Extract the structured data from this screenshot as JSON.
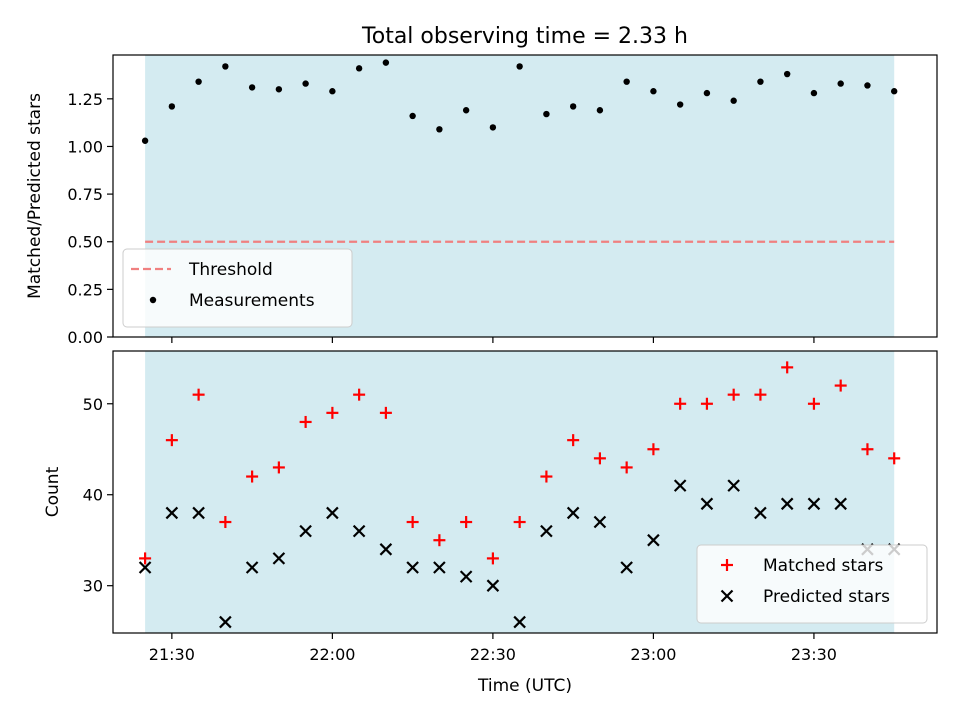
{
  "chart_data": [
    {
      "type": "scatter",
      "title": "Total observing time = 2.33 h",
      "xlabel": "",
      "ylabel": "Matched/Predicted stars",
      "ylim": [
        0,
        1.48
      ],
      "yticks": [
        "0.00",
        "0.25",
        "0.50",
        "0.75",
        "1.00",
        "1.25"
      ],
      "xticks": [
        "21:30",
        "22:00",
        "22:30",
        "23:00",
        "23:30"
      ],
      "x_range": [
        "21:19",
        "23:53"
      ],
      "shaded_interval": [
        "21:25",
        "23:45"
      ],
      "shade_color": "#d4ebf1",
      "grid": false,
      "legend_position": "lower-left",
      "threshold": {
        "name": "Threshold",
        "y": 0.5,
        "color": "#f08080",
        "style": "dashed"
      },
      "series": [
        {
          "name": "Measurements",
          "color": "#000000",
          "marker": "dot",
          "x": [
            "21:25",
            "21:30",
            "21:35",
            "21:40",
            "21:45",
            "21:50",
            "21:55",
            "22:00",
            "22:05",
            "22:10",
            "22:15",
            "22:20",
            "22:25",
            "22:30",
            "22:35",
            "22:40",
            "22:45",
            "22:50",
            "22:55",
            "23:00",
            "23:05",
            "23:10",
            "23:15",
            "23:20",
            "23:25",
            "23:30",
            "23:35",
            "23:40",
            "23:45"
          ],
          "y": [
            1.03,
            1.21,
            1.34,
            1.42,
            1.31,
            1.3,
            1.33,
            1.29,
            1.41,
            1.44,
            1.16,
            1.09,
            1.19,
            1.1,
            1.42,
            1.17,
            1.21,
            1.19,
            1.34,
            1.29,
            1.22,
            1.28,
            1.24,
            1.34,
            1.38,
            1.28,
            1.33,
            1.32,
            1.29
          ]
        }
      ]
    },
    {
      "type": "scatter",
      "title": "",
      "xlabel": "Time (UTC)",
      "ylabel": "Count",
      "ylim": [
        24.8,
        55.8
      ],
      "yticks": [
        "30",
        "40",
        "50"
      ],
      "xticks": [
        "21:30",
        "22:00",
        "22:30",
        "23:00",
        "23:30"
      ],
      "x_range": [
        "21:19",
        "23:53"
      ],
      "shaded_interval": [
        "21:25",
        "23:45"
      ],
      "shade_color": "#d4ebf1",
      "grid": false,
      "legend_position": "lower-right",
      "series": [
        {
          "name": "Matched stars",
          "color": "#ff0000",
          "marker": "plus",
          "x": [
            "21:25",
            "21:30",
            "21:35",
            "21:40",
            "21:45",
            "21:50",
            "21:55",
            "22:00",
            "22:05",
            "22:10",
            "22:15",
            "22:20",
            "22:25",
            "22:30",
            "22:35",
            "22:40",
            "22:45",
            "22:50",
            "22:55",
            "23:00",
            "23:05",
            "23:10",
            "23:15",
            "23:20",
            "23:25",
            "23:30",
            "23:35",
            "23:40",
            "23:45"
          ],
          "y": [
            33,
            46,
            51,
            37,
            42,
            43,
            48,
            49,
            51,
            49,
            37,
            35,
            37,
            33,
            37,
            42,
            46,
            44,
            43,
            45,
            50,
            50,
            51,
            51,
            54,
            50,
            52,
            45,
            44
          ]
        },
        {
          "name": "Predicted stars",
          "color": "#000000",
          "marker": "x",
          "x": [
            "21:25",
            "21:30",
            "21:35",
            "21:40",
            "21:45",
            "21:50",
            "21:55",
            "22:00",
            "22:05",
            "22:10",
            "22:15",
            "22:20",
            "22:25",
            "22:30",
            "22:35",
            "22:40",
            "22:45",
            "22:50",
            "22:55",
            "23:00",
            "23:05",
            "23:10",
            "23:15",
            "23:20",
            "23:25",
            "23:30",
            "23:35",
            "23:40",
            "23:45"
          ],
          "y": [
            32,
            38,
            38,
            26,
            32,
            33,
            36,
            38,
            36,
            34,
            32,
            32,
            31,
            30,
            26,
            36,
            38,
            37,
            32,
            35,
            41,
            39,
            41,
            38,
            39,
            39,
            39,
            34,
            34
          ]
        }
      ]
    }
  ]
}
